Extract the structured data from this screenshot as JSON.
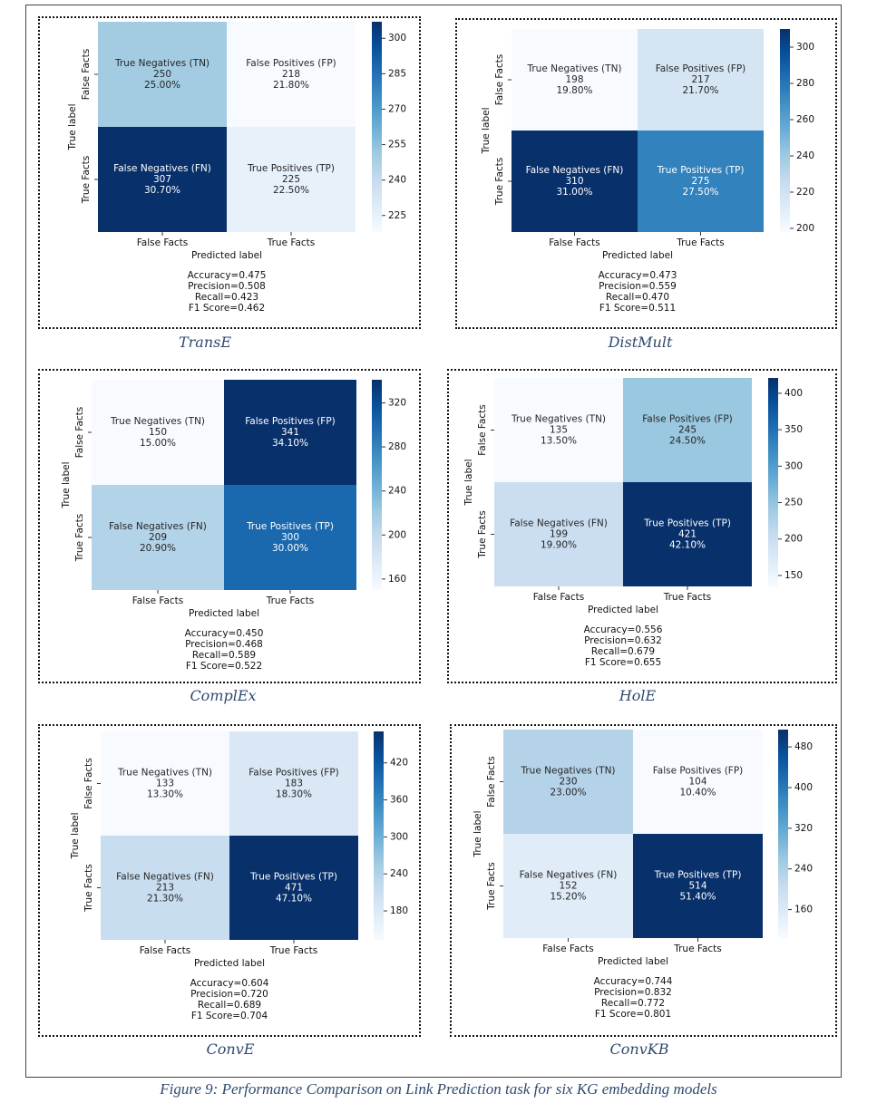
{
  "figure_caption": "Figure 9: Performance Comparison on Link Prediction task for six KG embedding models",
  "chart_data": [
    {
      "type": "heatmap",
      "caption": "TransE",
      "xlabel": "Predicted label",
      "ylabel": "True label",
      "x_ticks": [
        "False Facts",
        "True Facts"
      ],
      "y_ticks": [
        "False Facts",
        "True Facts"
      ],
      "cells": [
        [
          {
            "name": "True Negatives (TN)",
            "count": "250",
            "pct": "25.00%",
            "value": 250
          },
          {
            "name": "False Positives (FP)",
            "count": "218",
            "pct": "21.80%",
            "value": 218
          }
        ],
        [
          {
            "name": "False Negatives (FN)",
            "count": "307",
            "pct": "30.70%",
            "value": 307
          },
          {
            "name": "True Positives (TP)",
            "count": "225",
            "pct": "22.50%",
            "value": 225
          }
        ]
      ],
      "colorbar": {
        "range": [
          218,
          307
        ],
        "ticks": [
          225,
          240,
          255,
          270,
          285,
          300
        ]
      },
      "metrics": [
        "Accuracy=0.475",
        "Precision=0.508",
        "Recall=0.423",
        "F1 Score=0.462"
      ]
    },
    {
      "type": "heatmap",
      "caption": "DistMult",
      "xlabel": "Predicted label",
      "ylabel": "True label",
      "x_ticks": [
        "False Facts",
        "True Facts"
      ],
      "y_ticks": [
        "False Facts",
        "True Facts"
      ],
      "cells": [
        [
          {
            "name": "True Negatives (TN)",
            "count": "198",
            "pct": "19.80%",
            "value": 198
          },
          {
            "name": "False Positives (FP)",
            "count": "217",
            "pct": "21.70%",
            "value": 217
          }
        ],
        [
          {
            "name": "False Negatives (FN)",
            "count": "310",
            "pct": "31.00%",
            "value": 310
          },
          {
            "name": "True Positives (TP)",
            "count": "275",
            "pct": "27.50%",
            "value": 275
          }
        ]
      ],
      "colorbar": {
        "range": [
          198,
          310
        ],
        "ticks": [
          200,
          220,
          240,
          260,
          280,
          300
        ]
      },
      "metrics": [
        "Accuracy=0.473",
        "Precision=0.559",
        "Recall=0.470",
        "F1 Score=0.511"
      ]
    },
    {
      "type": "heatmap",
      "caption": "ComplEx",
      "xlabel": "Predicted label",
      "ylabel": "True label",
      "x_ticks": [
        "False Facts",
        "True Facts"
      ],
      "y_ticks": [
        "False Facts",
        "True Facts"
      ],
      "cells": [
        [
          {
            "name": "True Negatives (TN)",
            "count": "150",
            "pct": "15.00%",
            "value": 150
          },
          {
            "name": "False Positives (FP)",
            "count": "341",
            "pct": "34.10%",
            "value": 341
          }
        ],
        [
          {
            "name": "False Negatives (FN)",
            "count": "209",
            "pct": "20.90%",
            "value": 209
          },
          {
            "name": "True Positives (TP)",
            "count": "300",
            "pct": "30.00%",
            "value": 300
          }
        ]
      ],
      "colorbar": {
        "range": [
          150,
          341
        ],
        "ticks": [
          160,
          200,
          240,
          280,
          320
        ]
      },
      "metrics": [
        "Accuracy=0.450",
        "Precision=0.468",
        "Recall=0.589",
        "F1 Score=0.522"
      ]
    },
    {
      "type": "heatmap",
      "caption": "HolE",
      "xlabel": "Predicted label",
      "ylabel": "True label",
      "x_ticks": [
        "False Facts",
        "True Facts"
      ],
      "y_ticks": [
        "False Facts",
        "True Facts"
      ],
      "cells": [
        [
          {
            "name": "True Negatives (TN)",
            "count": "135",
            "pct": "13.50%",
            "value": 135
          },
          {
            "name": "False Positives (FP)",
            "count": "245",
            "pct": "24.50%",
            "value": 245
          }
        ],
        [
          {
            "name": "False Negatives (FN)",
            "count": "199",
            "pct": "19.90%",
            "value": 199
          },
          {
            "name": "True Positives (TP)",
            "count": "421",
            "pct": "42.10%",
            "value": 421
          }
        ]
      ],
      "colorbar": {
        "range": [
          135,
          421
        ],
        "ticks": [
          150,
          200,
          250,
          300,
          350,
          400
        ]
      },
      "metrics": [
        "Accuracy=0.556",
        "Precision=0.632",
        "Recall=0.679",
        "F1 Score=0.655"
      ]
    },
    {
      "type": "heatmap",
      "caption": "ConvE",
      "xlabel": "Predicted label",
      "ylabel": "True label",
      "x_ticks": [
        "False Facts",
        "True Facts"
      ],
      "y_ticks": [
        "False Facts",
        "True Facts"
      ],
      "cells": [
        [
          {
            "name": "True Negatives (TN)",
            "count": "133",
            "pct": "13.30%",
            "value": 133
          },
          {
            "name": "False Positives (FP)",
            "count": "183",
            "pct": "18.30%",
            "value": 183
          }
        ],
        [
          {
            "name": "False Negatives (FN)",
            "count": "213",
            "pct": "21.30%",
            "value": 213
          },
          {
            "name": "True Positives (TP)",
            "count": "471",
            "pct": "47.10%",
            "value": 471
          }
        ]
      ],
      "colorbar": {
        "range": [
          133,
          471
        ],
        "ticks": [
          180,
          240,
          300,
          360,
          420
        ]
      },
      "metrics": [
        "Accuracy=0.604",
        "Precision=0.720",
        "Recall=0.689",
        "F1 Score=0.704"
      ]
    },
    {
      "type": "heatmap",
      "caption": "ConvKB",
      "xlabel": "Predicted label",
      "ylabel": "True label",
      "x_ticks": [
        "False Facts",
        "True Facts"
      ],
      "y_ticks": [
        "False Facts",
        "True Facts"
      ],
      "cells": [
        [
          {
            "name": "True Negatives (TN)",
            "count": "230",
            "pct": "23.00%",
            "value": 230
          },
          {
            "name": "False Positives (FP)",
            "count": "104",
            "pct": "10.40%",
            "value": 104
          }
        ],
        [
          {
            "name": "False Negatives (FN)",
            "count": "152",
            "pct": "15.20%",
            "value": 152
          },
          {
            "name": "True Positives (TP)",
            "count": "514",
            "pct": "51.40%",
            "value": 514
          }
        ]
      ],
      "colorbar": {
        "range": [
          104,
          514
        ],
        "ticks": [
          160,
          240,
          320,
          400,
          480
        ]
      },
      "metrics": [
        "Accuracy=0.744",
        "Precision=0.832",
        "Recall=0.772",
        "F1 Score=0.801"
      ]
    }
  ]
}
